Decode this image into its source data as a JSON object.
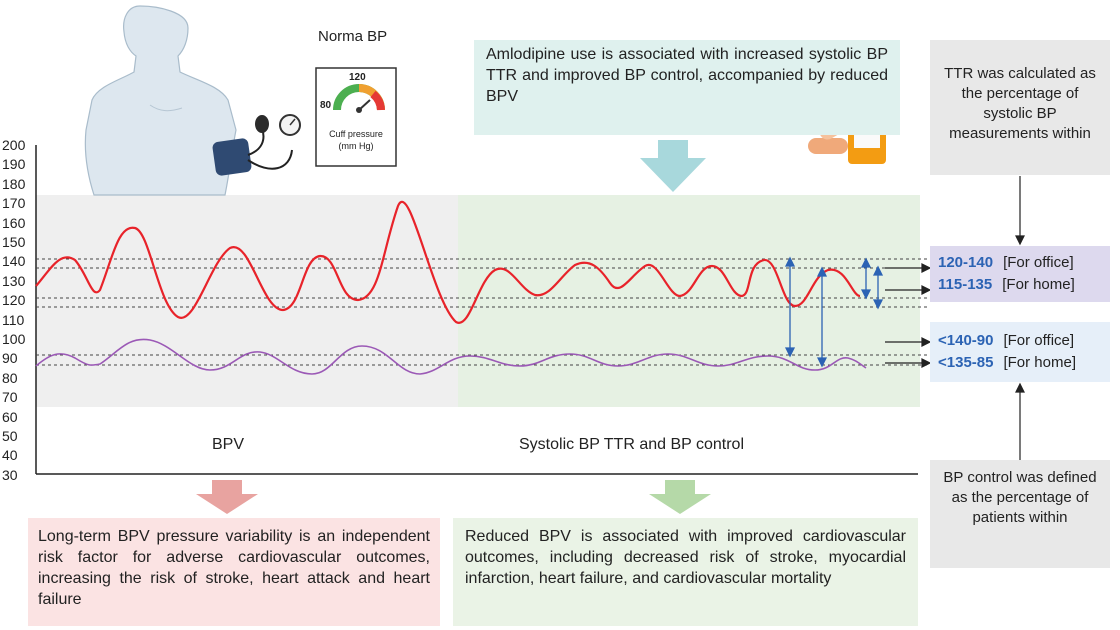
{
  "norm_bp": {
    "title": "Norma BP",
    "gauge": {
      "label_120": "120",
      "label_80": "80",
      "caption": "Cuff pressure\n(mm Hg)"
    }
  },
  "amlodipine_box": {
    "text": "Amlodipine use is associated with increased systolic BP TTR and improved BP control, accompanied by reduced BPV"
  },
  "ttr_box": {
    "text": "TTR was calculated as the percentage of systolic BP measurements within"
  },
  "bp_control_box": {
    "text": "BP control was defined as the percentage of patients within"
  },
  "y_axis": {
    "ticks": [
      "200",
      "190",
      "180",
      "170",
      "160",
      "150",
      "140",
      "130",
      "120",
      "110",
      "100",
      "90",
      "80",
      "70",
      "60",
      "50",
      "40",
      "30"
    ]
  },
  "sections": {
    "bpv_label": "BPV",
    "ttr_label": "Systolic BP TTR and BP control"
  },
  "systolic_ranges": [
    {
      "value": "120-140",
      "context": "[For office]"
    },
    {
      "value": "115-135",
      "context": "[For home]"
    }
  ],
  "control_ranges": [
    {
      "value": "<140-90",
      "context": "[For office]"
    },
    {
      "value": "<135-85",
      "context": "[For home]"
    }
  ],
  "bpv_outcome": {
    "text": "Long-term BPV pressure variability is an independent risk factor for adverse cardiovascular outcomes, increasing the risk of stroke, heart attack and heart failure"
  },
  "reduced_outcome": {
    "text": "Reduced BPV is associated with improved cardiovascular outcomes, including decreased risk of stroke, myocardial infarction, heart failure, and cardiovascular mortality"
  },
  "colors": {
    "systolic_curve": "#e8232a",
    "diastolic_curve": "#9b59b6",
    "range_text": "#2c63b4",
    "ttr_panel": "#e6f1e3",
    "bpv_panel": "#efefef",
    "amlodipine_bg": "#dff1ee",
    "pink_box": "#fbe3e3",
    "green_box": "#eaf3e6"
  }
}
